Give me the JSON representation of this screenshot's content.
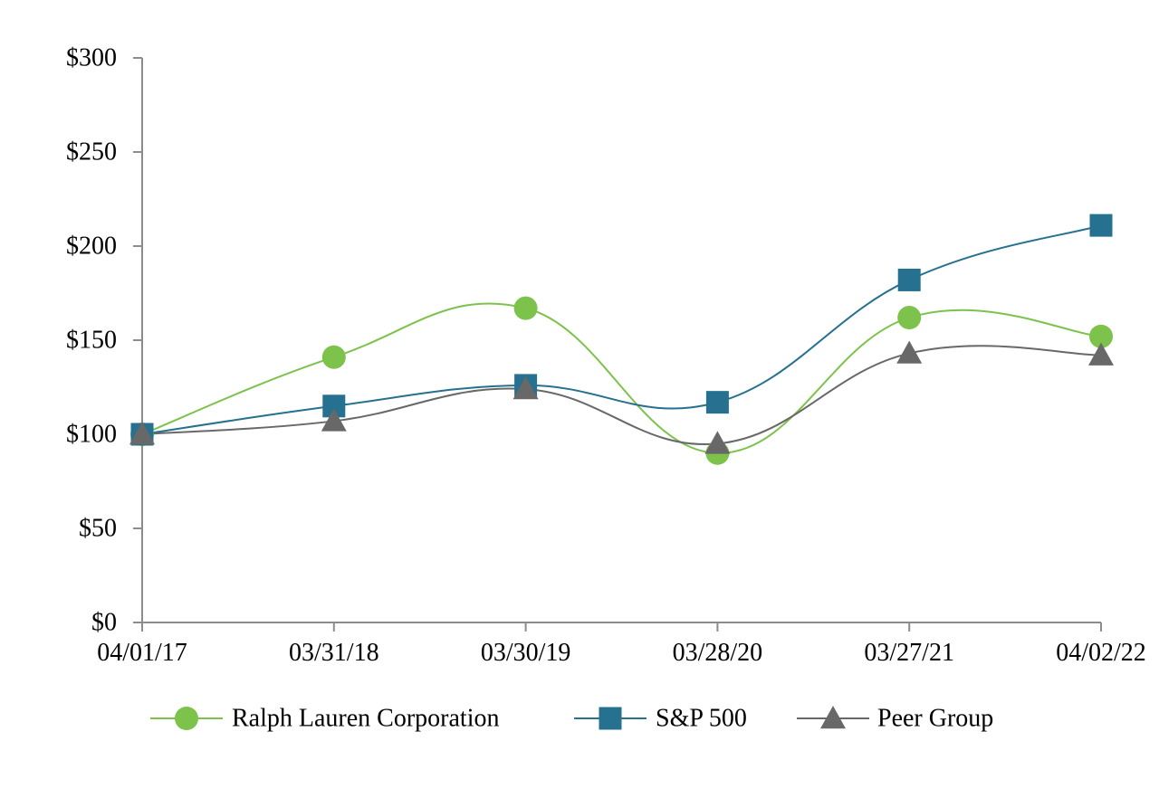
{
  "chart_data": {
    "type": "line",
    "title": "",
    "xlabel": "",
    "ylabel": "",
    "categories": [
      "04/01/17",
      "03/31/18",
      "03/30/19",
      "03/28/20",
      "03/27/21",
      "04/02/22"
    ],
    "ylim": [
      0,
      300
    ],
    "yticks": [
      0,
      50,
      100,
      150,
      200,
      250,
      300
    ],
    "ytick_labels": [
      "$0",
      "$50",
      "$100",
      "$150",
      "$200",
      "$250",
      "$300"
    ],
    "grid": false,
    "legend_position": "bottom",
    "series": [
      {
        "name": "Ralph Lauren Corporation",
        "marker": "circle",
        "color": "#7dc24b",
        "values": [
          100,
          141,
          167,
          90,
          162,
          152
        ]
      },
      {
        "name": "S&P 500",
        "marker": "square",
        "color": "#25718f",
        "values": [
          100,
          115,
          126,
          117,
          182,
          211
        ]
      },
      {
        "name": "Peer Group",
        "marker": "triangle",
        "color": "#686868",
        "values": [
          100,
          107,
          124,
          95,
          143,
          142
        ]
      }
    ]
  }
}
